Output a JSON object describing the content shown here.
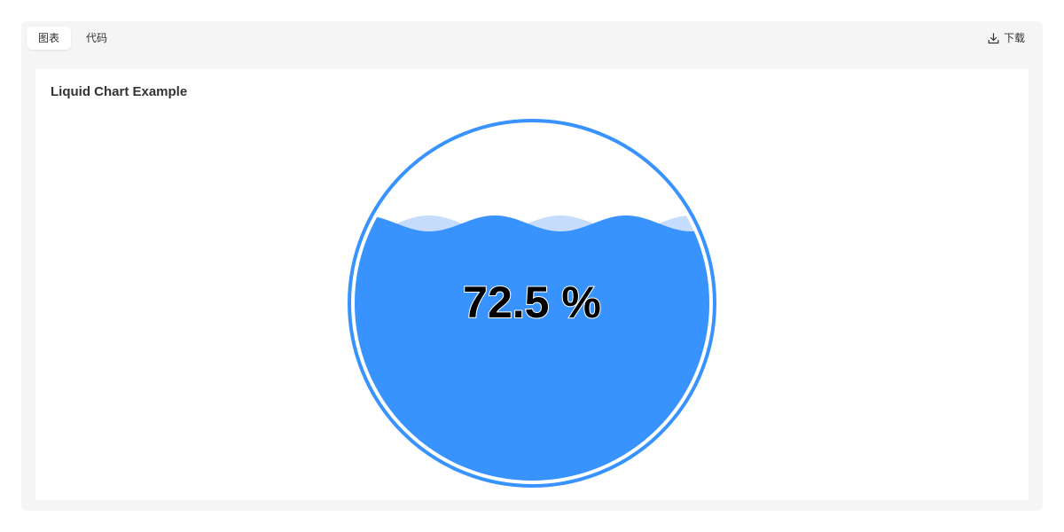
{
  "tabs": [
    {
      "label": "图表",
      "active": true
    },
    {
      "label": "代码",
      "active": false
    }
  ],
  "toolbar": {
    "download_label": "下载",
    "download_icon": "download-icon"
  },
  "chart_data": {
    "type": "liquid",
    "title": "Liquid Chart Example",
    "value": 0.725,
    "label": "72.5 %",
    "colors": {
      "fill": "#3993fe",
      "wave": "#9ec5fb",
      "outline": "#3993fe"
    }
  }
}
